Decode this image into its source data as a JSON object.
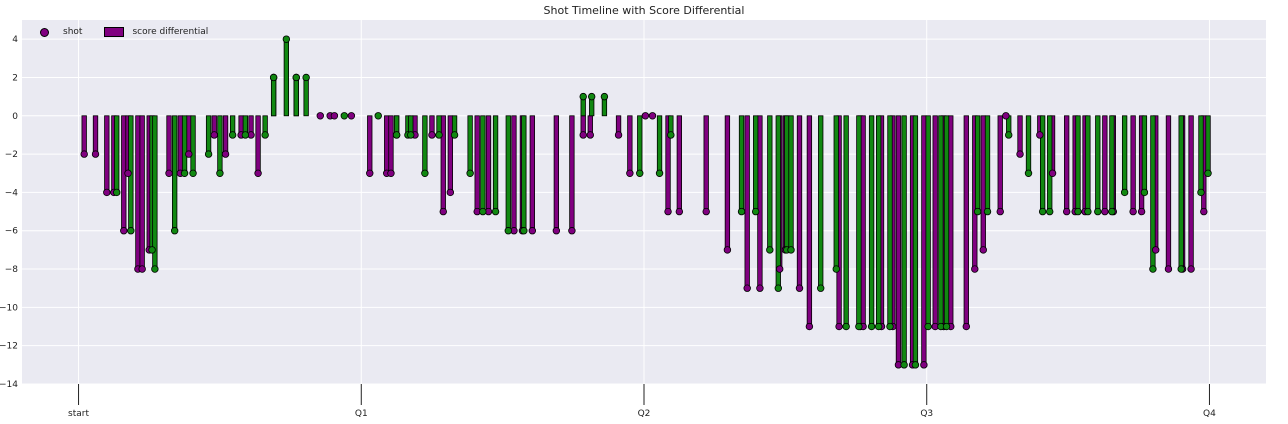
{
  "chart_data": {
    "type": "bar",
    "title": "Shot Timeline with Score Differential",
    "xlabel": "",
    "ylabel": "",
    "ylim": [
      -14,
      5
    ],
    "xlim": [
      -0.2,
      4.2
    ],
    "yticks": [
      4,
      2,
      0,
      -2,
      -4,
      -6,
      -8,
      -10,
      -12,
      -14
    ],
    "xticks": [
      0,
      1,
      2,
      3,
      4
    ],
    "xtick_labels": [
      "start",
      "Q1",
      "Q2",
      "Q3",
      "Q4"
    ],
    "grid": true,
    "legend": {
      "placement": "top-left",
      "entries": [
        {
          "label": "shot",
          "kind": "marker",
          "color": "#800080"
        },
        {
          "label": "score differential",
          "kind": "bar",
          "color": "#800080"
        }
      ]
    },
    "colors": {
      "team_a": "#800080",
      "team_b": "#118811",
      "background": "#eaeaf2",
      "grid": "#ffffff"
    },
    "series": [
      {
        "team": "team_a",
        "x": [
          0.02,
          0.06,
          0.1,
          0.125,
          0.16,
          0.175,
          0.21,
          0.225,
          0.25,
          0.32,
          0.36,
          0.39,
          0.48,
          0.52,
          0.575,
          0.61,
          0.635,
          0.69,
          0.77,
          0.855,
          0.89,
          0.905,
          0.965,
          1.03,
          1.09,
          1.105,
          1.125,
          1.19,
          1.25,
          1.29,
          1.315,
          1.41,
          1.45,
          1.54,
          1.57,
          1.605,
          1.69,
          1.745,
          1.785,
          1.81,
          1.91,
          1.95,
          2.005,
          2.03,
          2.085,
          2.125,
          2.22,
          2.295,
          2.365,
          2.41,
          2.48,
          2.5,
          2.55,
          2.585,
          2.69,
          2.765,
          2.775,
          2.84,
          2.88,
          2.9,
          2.95,
          2.99,
          3.03,
          3.06,
          3.085,
          3.14,
          3.17,
          3.2,
          3.26,
          3.28,
          3.33,
          3.4,
          3.445,
          3.495,
          3.525,
          3.56,
          3.63,
          3.66,
          3.73,
          3.76,
          3.81,
          3.855,
          3.905,
          3.935,
          3.98
        ],
        "y": [
          -2,
          -2,
          -4,
          -4,
          -6,
          -3,
          -8,
          -8,
          -7,
          -3,
          -3,
          -2,
          -1,
          -2,
          -1,
          -1,
          -3,
          2,
          2,
          0,
          0,
          0,
          0,
          -3,
          -3,
          -3,
          -1,
          -1,
          -1,
          -5,
          -4,
          -5,
          -5,
          -6,
          -6,
          -6,
          -6,
          -6,
          -1,
          -1,
          -1,
          -3,
          0,
          0,
          -5,
          -5,
          -5,
          -7,
          -9,
          -9,
          -8,
          -7,
          -9,
          -11,
          -11,
          -11,
          -11,
          -11,
          -11,
          -13,
          -13,
          -13,
          -11,
          -11,
          -11,
          -11,
          -8,
          -7,
          -5,
          0,
          -2,
          -1,
          -3,
          -5,
          -5,
          -5,
          -5,
          -5,
          -5,
          -5,
          -7,
          -8,
          -8,
          -8,
          -5
        ]
      },
      {
        "team": "team_b",
        "x": [
          0.135,
          0.185,
          0.26,
          0.27,
          0.34,
          0.375,
          0.405,
          0.46,
          0.5,
          0.545,
          0.59,
          0.66,
          0.69,
          0.735,
          0.77,
          0.805,
          0.94,
          1.06,
          1.125,
          1.165,
          1.175,
          1.225,
          1.275,
          1.33,
          1.385,
          1.43,
          1.475,
          1.52,
          1.575,
          1.785,
          1.815,
          1.86,
          1.985,
          2.055,
          2.095,
          2.345,
          2.395,
          2.445,
          2.475,
          2.505,
          2.52,
          2.625,
          2.68,
          2.715,
          2.76,
          2.805,
          2.83,
          2.87,
          2.92,
          2.96,
          3.005,
          3.05,
          3.07,
          3.18,
          3.215,
          3.29,
          3.36,
          3.41,
          3.435,
          3.535,
          3.57,
          3.605,
          3.655,
          3.7,
          3.77,
          3.8,
          3.9,
          3.97,
          3.995
        ],
        "y": [
          -4,
          -6,
          -7,
          -8,
          -6,
          -3,
          -3,
          -2,
          -3,
          -1,
          -1,
          -1,
          2,
          4,
          2,
          2,
          0,
          0,
          -1,
          -1,
          -1,
          -3,
          -1,
          -1,
          -3,
          -5,
          -5,
          -6,
          -6,
          1,
          1,
          1,
          -3,
          -3,
          -1,
          -5,
          -5,
          -7,
          -9,
          -7,
          -7,
          -9,
          -8,
          -11,
          -11,
          -11,
          -11,
          -11,
          -13,
          -13,
          -11,
          -11,
          -11,
          -5,
          -5,
          -1,
          -3,
          -5,
          -5,
          -5,
          -5,
          -5,
          -5,
          -4,
          -4,
          -8,
          -8,
          -4,
          -3
        ]
      }
    ]
  }
}
